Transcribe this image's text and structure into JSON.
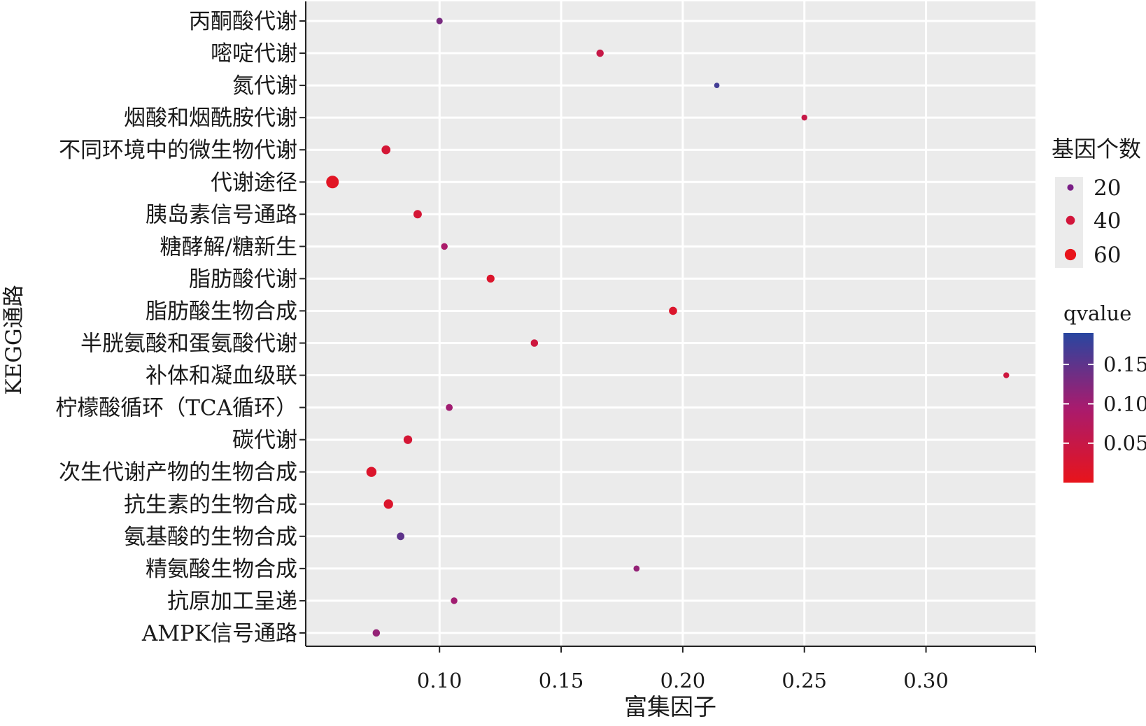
{
  "chart_data": {
    "type": "scatter",
    "title": "",
    "xlabel": "富集因子",
    "ylabel": "KEGG通路",
    "xlim": [
      0.045,
      0.345
    ],
    "xticks": [
      0.1,
      0.15,
      0.2,
      0.25,
      0.3
    ],
    "xtick_labels": [
      "0.10",
      "0.15",
      "0.20",
      "0.25",
      "0.30"
    ],
    "grid": true,
    "categories": [
      "丙酮酸代谢",
      "嘧啶代谢",
      "氮代谢",
      "烟酸和烟酰胺代谢",
      "不同环境中的微生物代谢",
      "代谢途径",
      "胰岛素信号通路",
      "糖酵解/糖新生",
      "脂肪酸代谢",
      "脂肪酸生物合成",
      "半胱氨酸和蛋氨酸代谢",
      "补体和凝血级联",
      "柠檬酸循环（TCA循环）",
      "碳代谢",
      "次生代谢产物的生物合成",
      "抗生素的生物合成",
      "氨基酸的生物合成",
      "精氨酸生物合成",
      "抗原加工呈递",
      "AMPK信号通路"
    ],
    "points": [
      {
        "y": "丙酮酸代谢",
        "x": 0.1,
        "count": 20,
        "qvalue": 0.13
      },
      {
        "y": "嘧啶代谢",
        "x": 0.166,
        "count": 28,
        "qvalue": 0.05
      },
      {
        "y": "氮代谢",
        "x": 0.214,
        "count": 12,
        "qvalue": 0.17
      },
      {
        "y": "烟酸和烟酰胺代谢",
        "x": 0.25,
        "count": 16,
        "qvalue": 0.05
      },
      {
        "y": "不同环境中的微生物代谢",
        "x": 0.078,
        "count": 40,
        "qvalue": 0.03
      },
      {
        "y": "代谢途径",
        "x": 0.056,
        "count": 70,
        "qvalue": 0.01
      },
      {
        "y": "胰岛素信号通路",
        "x": 0.091,
        "count": 36,
        "qvalue": 0.03
      },
      {
        "y": "糖酵解/糖新生",
        "x": 0.102,
        "count": 22,
        "qvalue": 0.09
      },
      {
        "y": "脂肪酸代谢",
        "x": 0.121,
        "count": 32,
        "qvalue": 0.02
      },
      {
        "y": "脂肪酸生物合成",
        "x": 0.196,
        "count": 34,
        "qvalue": 0.02
      },
      {
        "y": "半胱氨酸和蛋氨酸代谢",
        "x": 0.139,
        "count": 28,
        "qvalue": 0.04
      },
      {
        "y": "补体和凝血级联",
        "x": 0.333,
        "count": 16,
        "qvalue": 0.04
      },
      {
        "y": "柠檬酸循环（TCA循环）",
        "x": 0.104,
        "count": 24,
        "qvalue": 0.1
      },
      {
        "y": "碳代谢",
        "x": 0.087,
        "count": 38,
        "qvalue": 0.03
      },
      {
        "y": "次生代谢产物的生物合成",
        "x": 0.072,
        "count": 50,
        "qvalue": 0.02
      },
      {
        "y": "抗生素的生物合成",
        "x": 0.079,
        "count": 44,
        "qvalue": 0.02
      },
      {
        "y": "氨基酸的生物合成",
        "x": 0.084,
        "count": 30,
        "qvalue": 0.15
      },
      {
        "y": "精氨酸生物合成",
        "x": 0.181,
        "count": 18,
        "qvalue": 0.11
      },
      {
        "y": "抗原加工呈递",
        "x": 0.106,
        "count": 22,
        "qvalue": 0.1
      },
      {
        "y": "AMPK信号通路",
        "x": 0.074,
        "count": 28,
        "qvalue": 0.11
      }
    ],
    "size_legend": {
      "title": "基因个数",
      "values": [
        20,
        40,
        60
      ],
      "labels": [
        "20",
        "40",
        "60"
      ]
    },
    "color_legend": {
      "title": "qvalue",
      "range": [
        0.0,
        0.19
      ],
      "ticks": [
        0.05,
        0.1,
        0.15
      ],
      "tick_labels": [
        "0.05",
        "0.10",
        "0.15"
      ],
      "low_color": "#e8141b",
      "high_color": "#2846a0"
    },
    "panel_background": "#ebebeb",
    "grid_color": "#ffffff"
  }
}
